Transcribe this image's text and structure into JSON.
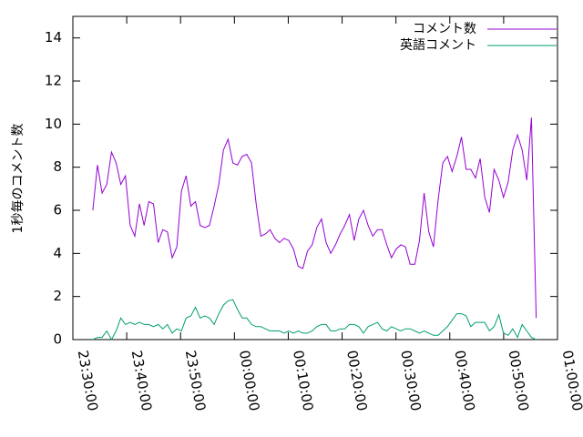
{
  "chart_data": {
    "type": "line",
    "ylabel": "1秒毎のコメント数",
    "x": [
      "23:33:42",
      "23:34:34",
      "23:35:26",
      "23:36:18",
      "23:37:10",
      "23:38:02",
      "23:38:54",
      "23:39:46",
      "23:40:38",
      "23:41:30",
      "23:42:22",
      "23:43:14",
      "23:44:06",
      "23:44:58",
      "23:45:50",
      "23:46:42",
      "23:47:34",
      "23:48:26",
      "23:49:18",
      "23:50:10",
      "23:51:02",
      "23:51:54",
      "23:52:46",
      "23:53:38",
      "23:54:30",
      "23:55:22",
      "23:56:14",
      "23:57:06",
      "23:57:58",
      "23:58:50",
      "23:59:42",
      "00:00:34",
      "00:01:26",
      "00:02:18",
      "00:03:10",
      "00:04:02",
      "00:04:54",
      "00:05:46",
      "00:06:38",
      "00:07:30",
      "00:08:22",
      "00:09:14",
      "00:10:06",
      "00:10:58",
      "00:11:50",
      "00:12:42",
      "00:13:34",
      "00:14:26",
      "00:15:18",
      "00:16:10",
      "00:17:02",
      "00:17:54",
      "00:18:46",
      "00:19:38",
      "00:20:30",
      "00:21:22",
      "00:22:14",
      "00:23:06",
      "00:23:58",
      "00:24:50",
      "00:25:42",
      "00:26:34",
      "00:27:26",
      "00:28:18",
      "00:29:10",
      "00:30:02",
      "00:30:54",
      "00:31:46",
      "00:32:38",
      "00:33:30",
      "00:34:22",
      "00:35:14",
      "00:36:06",
      "00:36:58",
      "00:37:50",
      "00:38:42",
      "00:39:34",
      "00:40:26",
      "00:41:18",
      "00:42:10",
      "00:43:02",
      "00:43:54",
      "00:44:46",
      "00:45:38",
      "00:46:30",
      "00:47:22",
      "00:48:14",
      "00:49:06",
      "00:49:58",
      "00:50:50",
      "00:51:42",
      "00:52:34",
      "00:53:26",
      "00:54:18",
      "00:55:10",
      "00:56:02"
    ],
    "series": [
      {
        "name": "コメント数",
        "color": "#9400d3",
        "values": [
          6.0,
          8.1,
          6.8,
          7.2,
          8.7,
          8.2,
          7.2,
          7.6,
          5.3,
          4.8,
          6.3,
          5.3,
          6.4,
          6.3,
          4.5,
          5.1,
          5.0,
          3.8,
          4.3,
          6.9,
          7.6,
          6.2,
          6.4,
          5.3,
          5.2,
          5.3,
          6.2,
          7.2,
          8.8,
          9.3,
          8.2,
          8.1,
          8.5,
          8.6,
          8.2,
          6.3,
          4.8,
          4.9,
          5.1,
          4.7,
          4.5,
          4.7,
          4.6,
          4.2,
          3.4,
          3.3,
          4.1,
          4.4,
          5.2,
          5.6,
          4.5,
          4.0,
          4.4,
          4.9,
          5.3,
          5.8,
          4.6,
          5.6,
          6.0,
          5.3,
          4.8,
          5.1,
          5.1,
          4.4,
          3.8,
          4.2,
          4.4,
          4.3,
          3.5,
          3.5,
          4.6,
          6.8,
          5.0,
          4.3,
          6.5,
          8.2,
          8.5,
          7.8,
          8.5,
          9.4,
          7.9,
          7.9,
          7.5,
          8.4,
          6.6,
          5.9,
          7.9,
          7.4,
          6.6,
          7.3,
          8.8,
          9.5,
          8.8,
          7.4,
          10.3,
          1.0
        ]
      },
      {
        "name": "英語コメント",
        "color": "#009e73",
        "values": [
          0.0,
          0.1,
          0.1,
          0.4,
          0.0,
          0.4,
          1.0,
          0.7,
          0.8,
          0.7,
          0.8,
          0.7,
          0.7,
          0.6,
          0.7,
          0.5,
          0.7,
          0.3,
          0.5,
          0.4,
          1.0,
          1.1,
          1.5,
          1.0,
          1.1,
          1.0,
          0.7,
          1.2,
          1.6,
          1.8,
          1.85,
          1.4,
          1.0,
          1.0,
          0.7,
          0.6,
          0.6,
          0.5,
          0.4,
          0.4,
          0.4,
          0.3,
          0.4,
          0.3,
          0.4,
          0.3,
          0.3,
          0.4,
          0.6,
          0.7,
          0.7,
          0.4,
          0.4,
          0.5,
          0.5,
          0.7,
          0.7,
          0.6,
          0.3,
          0.6,
          0.7,
          0.8,
          0.5,
          0.4,
          0.6,
          0.5,
          0.4,
          0.5,
          0.5,
          0.4,
          0.3,
          0.4,
          0.3,
          0.2,
          0.2,
          0.4,
          0.6,
          0.9,
          1.2,
          1.2,
          1.1,
          0.6,
          0.8,
          0.8,
          0.8,
          0.4,
          0.6,
          1.15,
          0.3,
          0.2,
          0.5,
          0.1,
          0.7,
          0.4,
          0.1,
          0.0
        ]
      }
    ],
    "xlim": [
      "23:30:00",
      "01:00:00"
    ],
    "xticks": [
      "23:30:00",
      "23:40:00",
      "23:50:00",
      "00:00:00",
      "00:10:00",
      "00:20:00",
      "00:30:00",
      "00:40:00",
      "00:50:00",
      "01:00:00"
    ],
    "ylim": [
      0,
      15
    ],
    "yticks": [
      0,
      2,
      4,
      6,
      8,
      10,
      12,
      14
    ],
    "legend": "top-right"
  }
}
